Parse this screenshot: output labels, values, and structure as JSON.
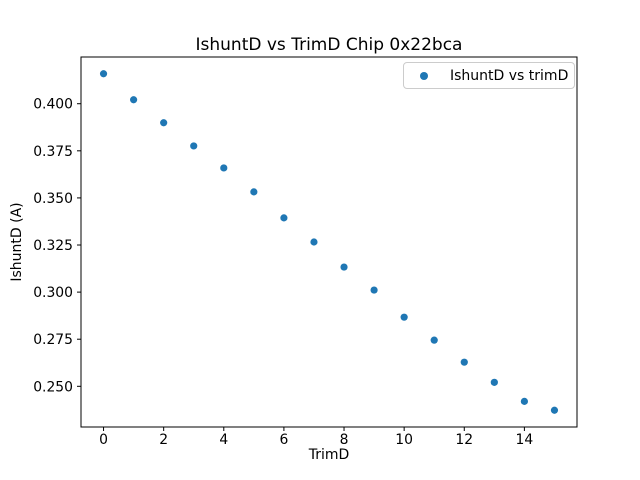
{
  "figure": {
    "background": "#ffffff",
    "text_color": "#000000",
    "spine_color": "#000000"
  },
  "chart_data": {
    "type": "scatter",
    "title": "IshuntD vs TrimD Chip 0x22bca",
    "xlabel": "TrimD",
    "ylabel": "IshuntD (A)",
    "grid": false,
    "legend_position": "upper right",
    "xlim": [
      -0.75,
      15.75
    ],
    "ylim": [
      0.2284,
      0.4248
    ],
    "xticks": {
      "values": [
        0,
        2,
        4,
        6,
        8,
        10,
        12,
        14
      ],
      "labels": [
        "0",
        "2",
        "4",
        "6",
        "8",
        "10",
        "12",
        "14"
      ]
    },
    "yticks": {
      "values": [
        0.25,
        0.275,
        0.3,
        0.325,
        0.35,
        0.375,
        0.4
      ],
      "labels": [
        "0.250",
        "0.275",
        "0.300",
        "0.325",
        "0.350",
        "0.375",
        "0.400"
      ]
    },
    "series": [
      {
        "name": "IshuntD vs trimD",
        "color": "#1f77b4",
        "marker": "circle",
        "x": [
          0,
          1,
          2,
          3,
          4,
          5,
          6,
          7,
          8,
          9,
          10,
          11,
          12,
          13,
          14,
          15
        ],
        "y": [
          0.4159,
          0.4021,
          0.3899,
          0.3776,
          0.3659,
          0.3532,
          0.3394,
          0.3266,
          0.3133,
          0.3011,
          0.2867,
          0.2745,
          0.2628,
          0.2521,
          0.242,
          0.2373
        ]
      }
    ]
  }
}
